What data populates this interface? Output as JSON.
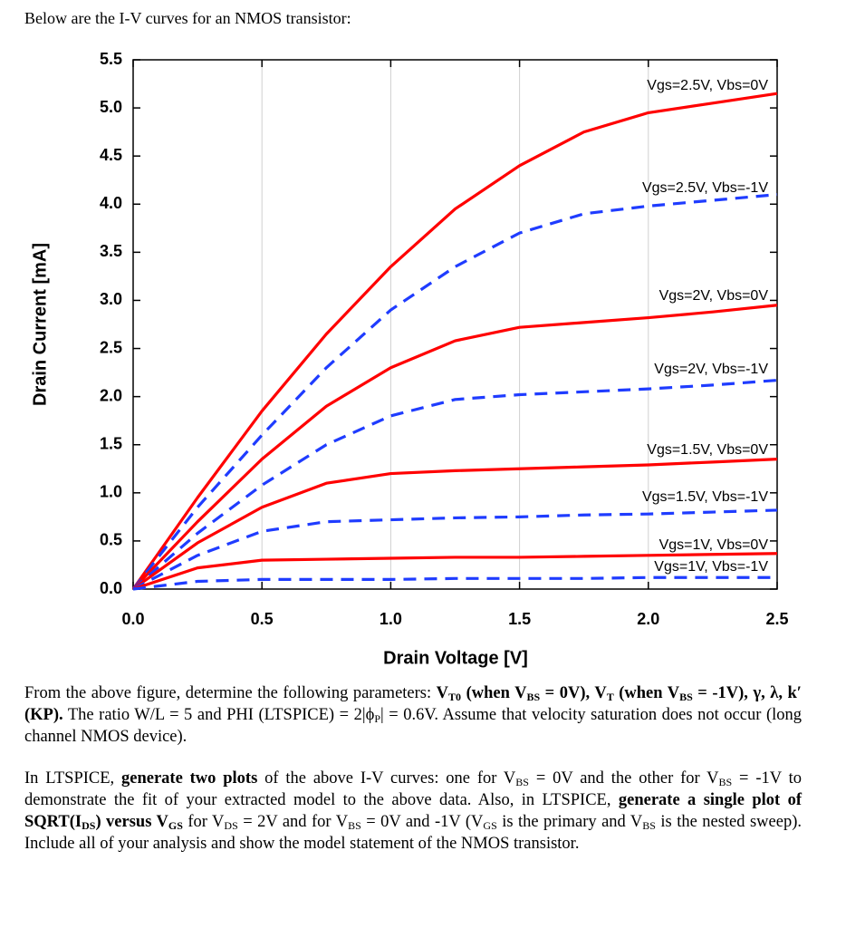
{
  "intro": "Below are the I-V curves for an NMOS transistor:",
  "chart_data": {
    "type": "line",
    "xlabel": "Drain Voltage [V]",
    "ylabel": "Drain Current [mA]",
    "x": [
      0,
      0.25,
      0.5,
      0.75,
      1.0,
      1.25,
      1.5,
      1.75,
      2.0,
      2.25,
      2.5
    ],
    "series": [
      {
        "name": "Vgs=2.5V, Vbs=0V",
        "color": "#ff0000",
        "dashed": false,
        "values": [
          0,
          0.95,
          1.85,
          2.65,
          3.35,
          3.95,
          4.4,
          4.75,
          4.95,
          5.05,
          5.15
        ]
      },
      {
        "name": "Vgs=2.5V, Vbs=-1V",
        "color": "#1f3cff",
        "dashed": true,
        "values": [
          0,
          0.85,
          1.6,
          2.3,
          2.9,
          3.35,
          3.7,
          3.9,
          3.98,
          4.04,
          4.1
        ]
      },
      {
        "name": "Vgs=2V, Vbs=0V",
        "color": "#ff0000",
        "dashed": false,
        "values": [
          0,
          0.7,
          1.35,
          1.9,
          2.3,
          2.58,
          2.72,
          2.77,
          2.82,
          2.88,
          2.95
        ]
      },
      {
        "name": "Vgs=2V, Vbs=-1V",
        "color": "#1f3cff",
        "dashed": true,
        "values": [
          0,
          0.58,
          1.08,
          1.5,
          1.8,
          1.97,
          2.02,
          2.05,
          2.08,
          2.12,
          2.17
        ]
      },
      {
        "name": "Vgs=1.5V, Vbs=0V",
        "color": "#ff0000",
        "dashed": false,
        "values": [
          0,
          0.48,
          0.85,
          1.1,
          1.2,
          1.23,
          1.25,
          1.27,
          1.29,
          1.32,
          1.35
        ]
      },
      {
        "name": "Vgs=1.5V, Vbs=-1V",
        "color": "#1f3cff",
        "dashed": true,
        "values": [
          0,
          0.35,
          0.6,
          0.7,
          0.72,
          0.74,
          0.75,
          0.77,
          0.78,
          0.8,
          0.82
        ]
      },
      {
        "name": "Vgs=1V, Vbs=0V",
        "color": "#ff0000",
        "dashed": false,
        "values": [
          0,
          0.22,
          0.3,
          0.31,
          0.32,
          0.33,
          0.33,
          0.34,
          0.35,
          0.36,
          0.37
        ]
      },
      {
        "name": "Vgs=1V, Vbs=-1V",
        "color": "#1f3cff",
        "dashed": true,
        "values": [
          0,
          0.08,
          0.1,
          0.1,
          0.1,
          0.11,
          0.11,
          0.11,
          0.12,
          0.12,
          0.12
        ]
      }
    ],
    "xlim": [
      0,
      2.5
    ],
    "ylim": [
      0,
      5.5
    ],
    "xticks": [
      {
        "value": 0,
        "label": "0.0"
      },
      0.5,
      {
        "value": 1,
        "label": "1.0"
      },
      1.5,
      {
        "value": 2,
        "label": "2.0"
      },
      2.5
    ],
    "yticks": [
      {
        "value": 0,
        "label": "0.0"
      },
      0.5,
      {
        "value": 1,
        "label": "1.0"
      },
      1.5,
      {
        "value": 2,
        "label": "2.0"
      },
      2.5,
      {
        "value": 3,
        "label": "3.0"
      },
      3.5,
      {
        "value": 4,
        "label": "4.0"
      },
      4.5,
      {
        "value": 5,
        "label": "5.0"
      },
      5.5
    ],
    "grid": "x"
  },
  "paragraphs": [
    [
      {
        "text": "From the above figure, determine the following parameters:  "
      },
      {
        "text": "V",
        "bold": true
      },
      {
        "text": "T0",
        "bold": true,
        "sub": true
      },
      {
        "text": " (when V",
        "bold": true
      },
      {
        "text": "BS",
        "bold": true,
        "sub": true
      },
      {
        "text": " = 0V), V",
        "bold": true
      },
      {
        "text": "T",
        "bold": true,
        "sub": true
      },
      {
        "text": " (when V",
        "bold": true
      },
      {
        "text": "BS",
        "bold": true,
        "sub": true
      },
      {
        "text": " = -1V), γ, λ, k′ (KP).",
        "bold": true
      },
      {
        "text": "  The ratio W/L = 5 and PHI (LTSPICE) = 2|ϕ"
      },
      {
        "text": "P",
        "sub": true
      },
      {
        "text": "| = 0.6V.  Assume that velocity saturation does not occur (long channel NMOS device)."
      }
    ],
    [
      {
        "text": "In LTSPICE, "
      },
      {
        "text": "generate two plots",
        "bold": true
      },
      {
        "text": " of the above I-V curves:  one for V"
      },
      {
        "text": "BS",
        "sub": true
      },
      {
        "text": " = 0V and the other for V"
      },
      {
        "text": "BS",
        "sub": true
      },
      {
        "text": " = -1V to demonstrate the fit of your extracted model to the above data.  Also, in LTSPICE, "
      },
      {
        "text": "generate a single plot of SQRT(I",
        "bold": true
      },
      {
        "text": "DS",
        "bold": true,
        "sub": true
      },
      {
        "text": ") versus V",
        "bold": true
      },
      {
        "text": "GS",
        "bold": true,
        "sub": true
      },
      {
        "text": " for V"
      },
      {
        "text": "DS",
        "sub": true
      },
      {
        "text": " = 2V and for V"
      },
      {
        "text": "BS",
        "sub": true
      },
      {
        "text": " = 0V and -1V (V"
      },
      {
        "text": "GS",
        "sub": true
      },
      {
        "text": " is the primary and V"
      },
      {
        "text": "BS",
        "sub": true
      },
      {
        "text": " is the nested sweep).  Include all of your analysis and show the model statement of the NMOS transistor."
      }
    ]
  ]
}
